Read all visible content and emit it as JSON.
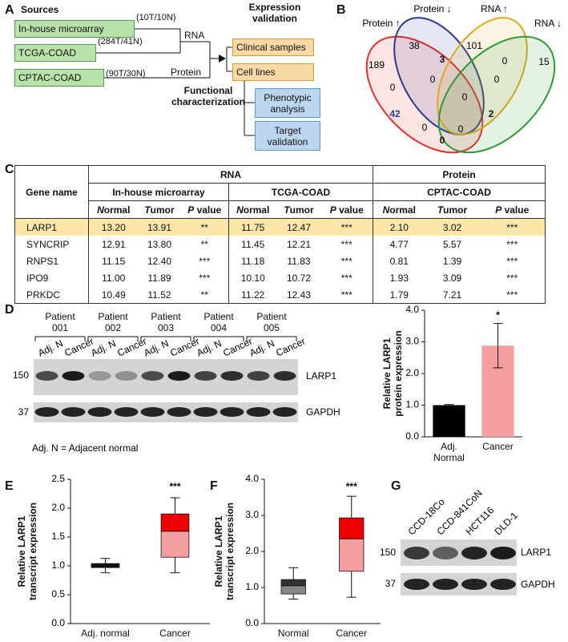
{
  "panel_labels": [
    "A",
    "B",
    "C",
    "D",
    "E",
    "F",
    "G"
  ],
  "workflow": {
    "sources_title": "Sources",
    "sources": [
      {
        "label": "In-house microarray",
        "samples": "(10T/10N)"
      },
      {
        "label": "TCGA-COAD",
        "samples": "(284T/41N)"
      },
      {
        "label": "CPTAC-COAD",
        "samples": "(90T/30N)"
      }
    ],
    "rna": "RNA",
    "protein": "Protein",
    "validation_title": "Expression validation",
    "validation": [
      "Clinical samples",
      "Cell lines"
    ],
    "functional_title": "Functional characterization",
    "functional": [
      "Phenotypic analysis",
      "Target validation"
    ]
  },
  "venn": {
    "sets": [
      "Protein ↑",
      "Protein ↓",
      "RNA ↑",
      "RNA ↓"
    ],
    "colors": [
      "#e8302a",
      "#2b3a8f",
      "#e0a81e",
      "#2e9a35"
    ],
    "regions": [
      189,
      38,
      3,
      101,
      0,
      15,
      0,
      0,
      0,
      0,
      42,
      0,
      2,
      0,
      0
    ]
  },
  "table": {
    "corner": "Gene name",
    "groups": [
      "RNA",
      "Protein"
    ],
    "datasets": [
      "In-house microarray",
      "TCGA-COAD",
      "CPTAC-COAD"
    ],
    "columns": [
      "Normal",
      "Tumor",
      "P value",
      "Normal",
      "Tumor",
      "P value",
      "Normal",
      "Tumor",
      "P value"
    ],
    "highlight_row": 0,
    "highlight_color": "#fde7a8",
    "rows": [
      [
        "LARP1",
        "13.20",
        "13.91",
        "**",
        "11.75",
        "12.47",
        "***",
        "2.10",
        "3.02",
        "***"
      ],
      [
        "SYNCRIP",
        "12.91",
        "13.80",
        "**",
        "11.45",
        "12.21",
        "***",
        "4.77",
        "5.57",
        "***"
      ],
      [
        "RNPS1",
        "11.15",
        "12.40",
        "***",
        "11.18",
        "11.83",
        "***",
        "0.81",
        "1.39",
        "***"
      ],
      [
        "IPO9",
        "11.00",
        "11.89",
        "***",
        "10.10",
        "10.72",
        "***",
        "1.93",
        "3.09",
        "***"
      ],
      [
        "PRKDC",
        "10.49",
        "11.52",
        "**",
        "11.22",
        "12.43",
        "***",
        "1.79",
        "7.21",
        "***"
      ]
    ]
  },
  "blot_d": {
    "patients": [
      "Patient 001",
      "Patient 002",
      "Patient 003",
      "Patient 004",
      "Patient 005"
    ],
    "lanes": [
      "Adj. N",
      "Cancer",
      "Adj. N",
      "Cancer",
      "Adj. N",
      "Cancer",
      "Adj. N",
      "Cancer",
      "Adj. N",
      "Cancer"
    ],
    "markers": [
      "150",
      "37"
    ],
    "proteins": [
      "LARP1",
      "GAPDH"
    ],
    "note": "Adj. N = Adjacent normal"
  },
  "blot_g": {
    "lanes": [
      "CCD-18Co",
      "CCD-841CoN",
      "HCT116",
      "DLD-1"
    ],
    "markers": [
      "150",
      "37"
    ],
    "proteins": [
      "LARP1",
      "GAPDH"
    ]
  },
  "chart_data": [
    {
      "type": "bar",
      "y_label": "Relative LARP1 protein expression",
      "categories": [
        "Adj. Normal",
        "Cancer"
      ],
      "values": [
        1.0,
        2.88
      ],
      "errors": [
        0.02,
        0.7
      ],
      "colors": [
        "#000000",
        "#f4a0a0"
      ],
      "significance": [
        null,
        "*"
      ],
      "ylim": [
        0,
        4
      ],
      "yticks": [
        {
          "value": 0,
          "label": "0.0"
        },
        {
          "value": 1,
          "label": "1.0"
        },
        {
          "value": 2,
          "label": "2.0"
        },
        {
          "value": 3,
          "label": "3.0"
        },
        {
          "value": 4,
          "label": "4.0"
        }
      ]
    },
    {
      "type": "box",
      "y_label": "Relative LARP1 transcript expression",
      "categories": [
        "Adj. normal",
        "Cancer"
      ],
      "min": [
        0.88,
        0.88
      ],
      "q1": [
        0.97,
        1.15
      ],
      "median": [
        1.0,
        1.6
      ],
      "q3": [
        1.04,
        1.9
      ],
      "max": [
        1.13,
        2.18
      ],
      "lower_colors": [
        "#111111",
        "#f4a0a0"
      ],
      "upper_colors": [
        "#111111",
        "#ee0000"
      ],
      "significance": [
        null,
        "***"
      ],
      "ylim": [
        0,
        2.5
      ],
      "yticks": [
        {
          "value": 0,
          "label": "0.0"
        },
        0.5,
        {
          "value": 1,
          "label": "1.0"
        },
        1.5,
        {
          "value": 2,
          "label": "2.0"
        },
        2.5
      ]
    },
    {
      "type": "box",
      "y_label": "Relative LARP1 transcript expression",
      "categories": [
        "Normal",
        "Cancer"
      ],
      "min": [
        0.68,
        0.73
      ],
      "q1": [
        0.82,
        1.45
      ],
      "median": [
        1.05,
        2.35
      ],
      "q3": [
        1.22,
        2.93
      ],
      "max": [
        1.55,
        3.53
      ],
      "lower_colors": [
        "#888888",
        "#f4a0a0"
      ],
      "upper_colors": [
        "#333333",
        "#ee0000"
      ],
      "significance": [
        null,
        "***"
      ],
      "ylim": [
        0,
        4
      ],
      "yticks": [
        {
          "value": 0,
          "label": "0.0"
        },
        {
          "value": 1,
          "label": "1.0"
        },
        {
          "value": 2,
          "label": "2.0"
        },
        {
          "value": 3,
          "label": "3.0"
        },
        {
          "value": 4,
          "label": "4.0"
        }
      ]
    }
  ]
}
